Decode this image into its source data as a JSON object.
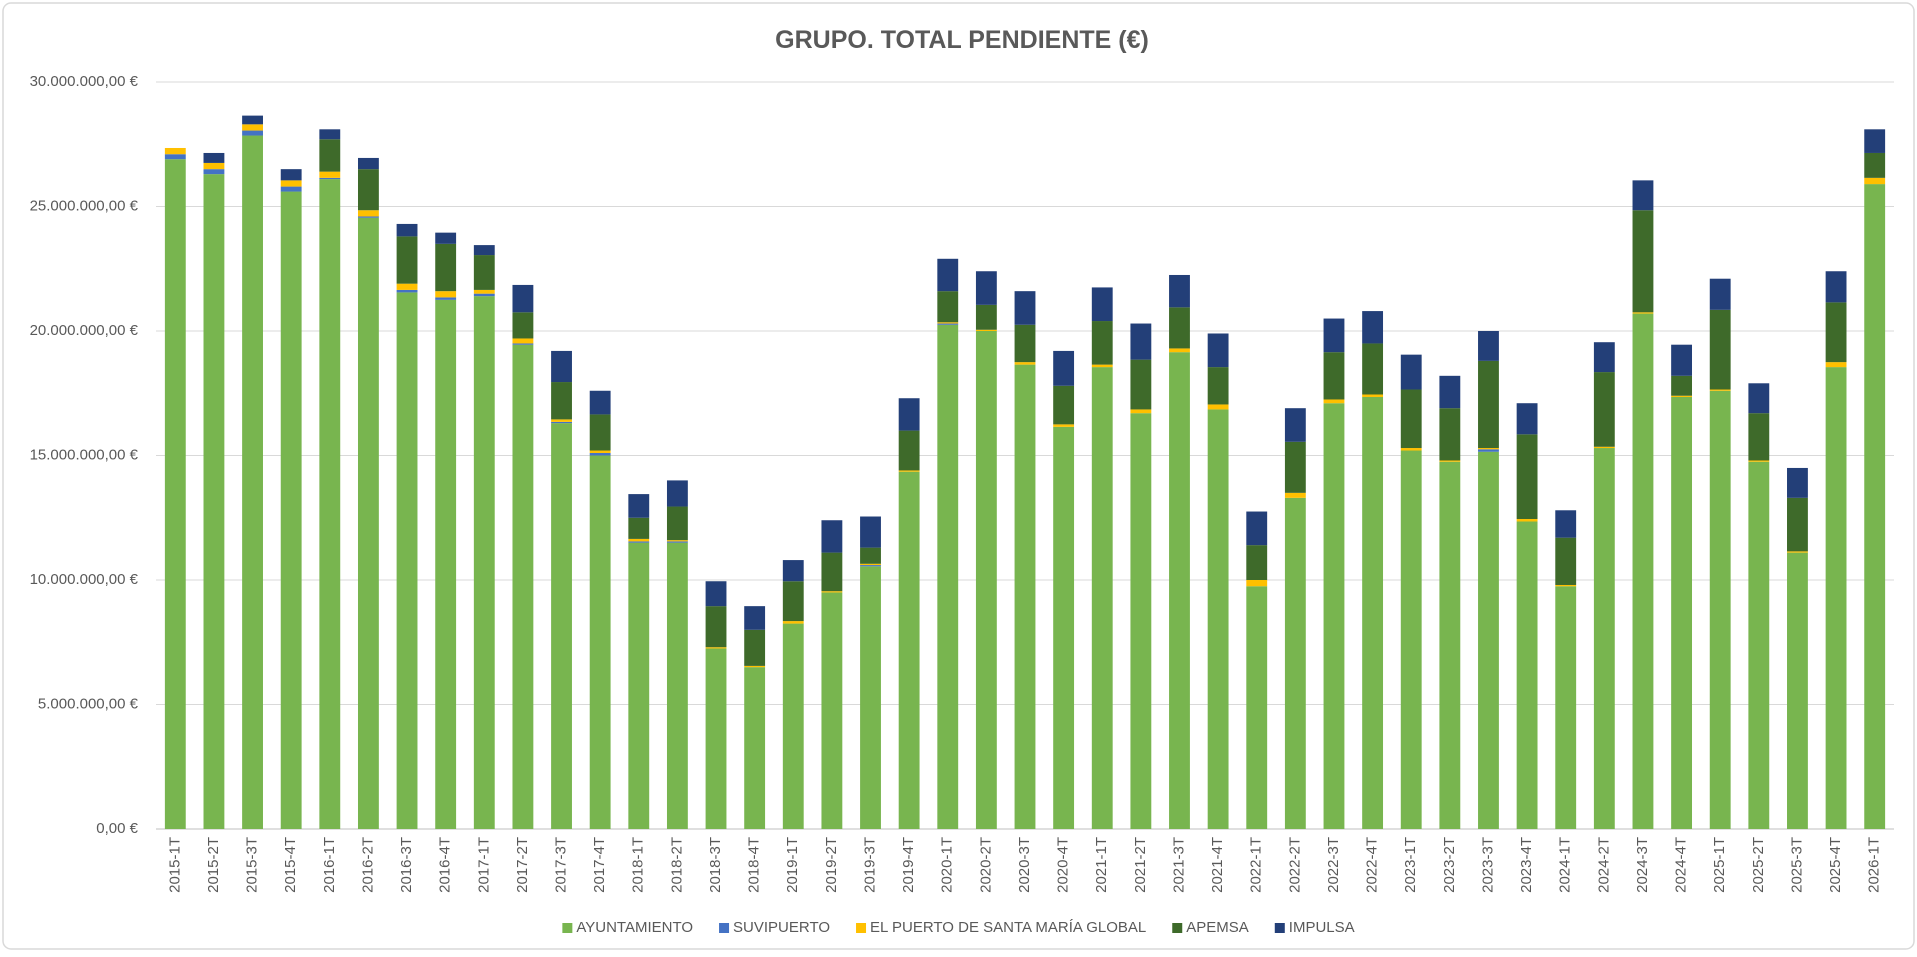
{
  "chart_data": {
    "type": "stacked_bar",
    "title": "GRUPO. TOTAL PENDIENTE (€)",
    "categories": [
      "2015-1T",
      "2015-2T",
      "2015-3T",
      "2015-4T",
      "2016-1T",
      "2016-2T",
      "2016-3T",
      "2016-4T",
      "2017-1T",
      "2017-2T",
      "2017-3T",
      "2017-4T",
      "2018-1T",
      "2018-2T",
      "2018-3T",
      "2018-4T",
      "2019-1T",
      "2019-2T",
      "2019-3T",
      "2019-4T",
      "2020-1T",
      "2020-2T",
      "2020-3T",
      "2020-4T",
      "2021-1T",
      "2021-2T",
      "2021-3T",
      "2021-4T",
      "2022-1T",
      "2022-2T",
      "2022-3T",
      "2022-4T",
      "2023-1T",
      "2023-2T",
      "2023-3T",
      "2023-4T",
      "2024-1T",
      "2024-2T",
      "2024-3T",
      "2024-4T",
      "2025-1T",
      "2025-2T",
      "2025-3T",
      "2025-4T",
      "2026-1T"
    ],
    "series": [
      {
        "name": "AYUNTAMIENTO",
        "color": "#78b54f",
        "values": [
          26900000,
          26300000,
          27850000,
          25600000,
          26100000,
          24550000,
          21550000,
          21250000,
          21400000,
          19450000,
          16300000,
          15000000,
          11500000,
          11500000,
          7250000,
          6500000,
          8250000,
          9500000,
          10550000,
          14350000,
          20250000,
          20000000,
          18650000,
          16150000,
          18550000,
          16700000,
          19150000,
          16850000,
          9750000,
          13300000,
          17100000,
          17350000,
          15200000,
          14750000,
          15150000,
          12350000,
          9750000,
          15300000,
          20700000,
          17350000,
          17600000,
          14750000,
          11100000,
          18550000,
          25900000
        ]
      },
      {
        "name": "SUVIPUERTO",
        "color": "#4472c4",
        "values": [
          200000,
          200000,
          200000,
          200000,
          50000,
          50000,
          100000,
          100000,
          100000,
          50000,
          50000,
          100000,
          50000,
          50000,
          0,
          0,
          0,
          0,
          50000,
          0,
          50000,
          0,
          0,
          0,
          0,
          0,
          0,
          0,
          0,
          0,
          0,
          0,
          0,
          0,
          100000,
          0,
          0,
          0,
          0,
          0,
          0,
          0,
          0,
          0,
          0
        ]
      },
      {
        "name": "EL PUERTO DE SANTA MARÍA GLOBAL",
        "color": "#ffc000",
        "values": [
          250000,
          250000,
          250000,
          250000,
          250000,
          250000,
          250000,
          250000,
          150000,
          200000,
          100000,
          100000,
          100000,
          50000,
          50000,
          50000,
          100000,
          50000,
          50000,
          50000,
          50000,
          50000,
          100000,
          100000,
          100000,
          150000,
          150000,
          200000,
          250000,
          200000,
          150000,
          100000,
          100000,
          50000,
          50000,
          100000,
          50000,
          50000,
          50000,
          50000,
          50000,
          50000,
          50000,
          200000,
          250000
        ]
      },
      {
        "name": "APEMSA",
        "color": "#3e6a2a",
        "values": [
          0,
          0,
          0,
          0,
          1300000,
          1650000,
          1900000,
          1900000,
          1400000,
          1050000,
          1500000,
          1450000,
          850000,
          1350000,
          1650000,
          1450000,
          1600000,
          1550000,
          650000,
          1600000,
          1250000,
          1000000,
          1500000,
          1550000,
          1750000,
          2000000,
          1650000,
          1500000,
          1400000,
          2050000,
          1900000,
          2050000,
          2350000,
          2100000,
          3500000,
          3400000,
          1900000,
          3000000,
          4100000,
          800000,
          3200000,
          1900000,
          2150000,
          2400000,
          1000000
        ]
      },
      {
        "name": "IMPULSA",
        "color": "#233f78",
        "values": [
          0,
          400000,
          350000,
          450000,
          400000,
          450000,
          500000,
          450000,
          400000,
          1100000,
          1250000,
          950000,
          950000,
          1050000,
          1000000,
          950000,
          850000,
          1300000,
          1250000,
          1300000,
          1300000,
          1350000,
          1350000,
          1400000,
          1350000,
          1450000,
          1300000,
          1350000,
          1350000,
          1350000,
          1350000,
          1300000,
          1400000,
          1300000,
          1200000,
          1250000,
          1100000,
          1200000,
          1200000,
          1250000,
          1250000,
          1200000,
          1200000,
          1250000,
          950000
        ]
      }
    ],
    "ylim": [
      0,
      30000000
    ],
    "yticks": [
      {
        "value": 0,
        "label": "0,00 €"
      },
      {
        "value": 5000000,
        "label": "5.000.000,00 €"
      },
      {
        "value": 10000000,
        "label": "10.000.000,00 €"
      },
      {
        "value": 15000000,
        "label": "15.000.000,00 €"
      },
      {
        "value": 20000000,
        "label": "20.000.000,00 €"
      },
      {
        "value": 25000000,
        "label": "25.000.000,00 €"
      },
      {
        "value": 30000000,
        "label": "30.000.000,00 €"
      }
    ],
    "grid": true,
    "legend": "bottom"
  }
}
